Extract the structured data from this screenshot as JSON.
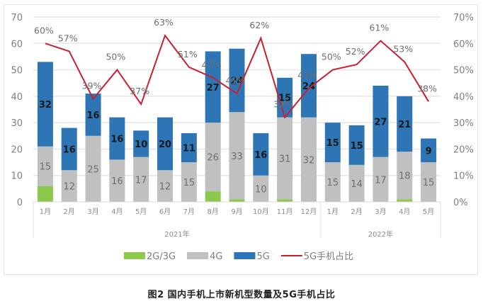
{
  "caption": "图2  国内手机上市新机型数量及5G手机占比",
  "colors": {
    "g23": "#8cc84b",
    "g4": "#c0c0c0",
    "g5": "#2e75b6",
    "share_line": "#c8202e",
    "grid": "#e6e6e6",
    "axis_text": "#7f7f7f"
  },
  "chart_data": {
    "type": "bar",
    "stacked": true,
    "title": "图2  国内手机上市新机型数量及5G手机占比",
    "categories": [
      "1月",
      "2月",
      "3月",
      "4月",
      "5月",
      "6月",
      "7月",
      "8月",
      "9月",
      "10月",
      "11月",
      "12月",
      "1月",
      "2月",
      "3月",
      "4月",
      "5月"
    ],
    "category_groups": [
      {
        "label": "2021年",
        "start": 0,
        "end": 11
      },
      {
        "label": "2022年",
        "start": 12,
        "end": 16
      }
    ],
    "series": [
      {
        "name": "2G/3G",
        "type": "bar",
        "axis": "left",
        "values": [
          6,
          0,
          0,
          0,
          0,
          0,
          0,
          4,
          1,
          0,
          1,
          0,
          0,
          0,
          0,
          1,
          0
        ]
      },
      {
        "name": "4G",
        "type": "bar",
        "axis": "left",
        "values": [
          15,
          12,
          25,
          16,
          17,
          12,
          15,
          26,
          33,
          10,
          31,
          32,
          15,
          14,
          17,
          18,
          15
        ]
      },
      {
        "name": "5G",
        "type": "bar",
        "axis": "left",
        "values": [
          32,
          16,
          16,
          16,
          10,
          20,
          11,
          27,
          24,
          16,
          15,
          24,
          15,
          15,
          27,
          21,
          9
        ]
      },
      {
        "name": "5G手机占比",
        "type": "line",
        "axis": "right",
        "unit": "%",
        "values": [
          60,
          57,
          39,
          50,
          37,
          63,
          51,
          47,
          41,
          62,
          32,
          43,
          50,
          52,
          61,
          53,
          38
        ]
      }
    ],
    "y_left": {
      "ticks": [
        0,
        10,
        20,
        30,
        40,
        50,
        60,
        70
      ],
      "ylim": [
        0,
        70
      ]
    },
    "y_right": {
      "ticks": [
        "0%",
        "10%",
        "20%",
        "30%",
        "40%",
        "50%",
        "60%",
        "70%"
      ],
      "ylim": [
        0,
        70
      ]
    },
    "xlabel": "",
    "ylabel": "",
    "grid": true,
    "legend": {
      "position": "bottom",
      "entries": [
        "2G/3G",
        "4G",
        "5G",
        "5G手机占比"
      ]
    }
  }
}
